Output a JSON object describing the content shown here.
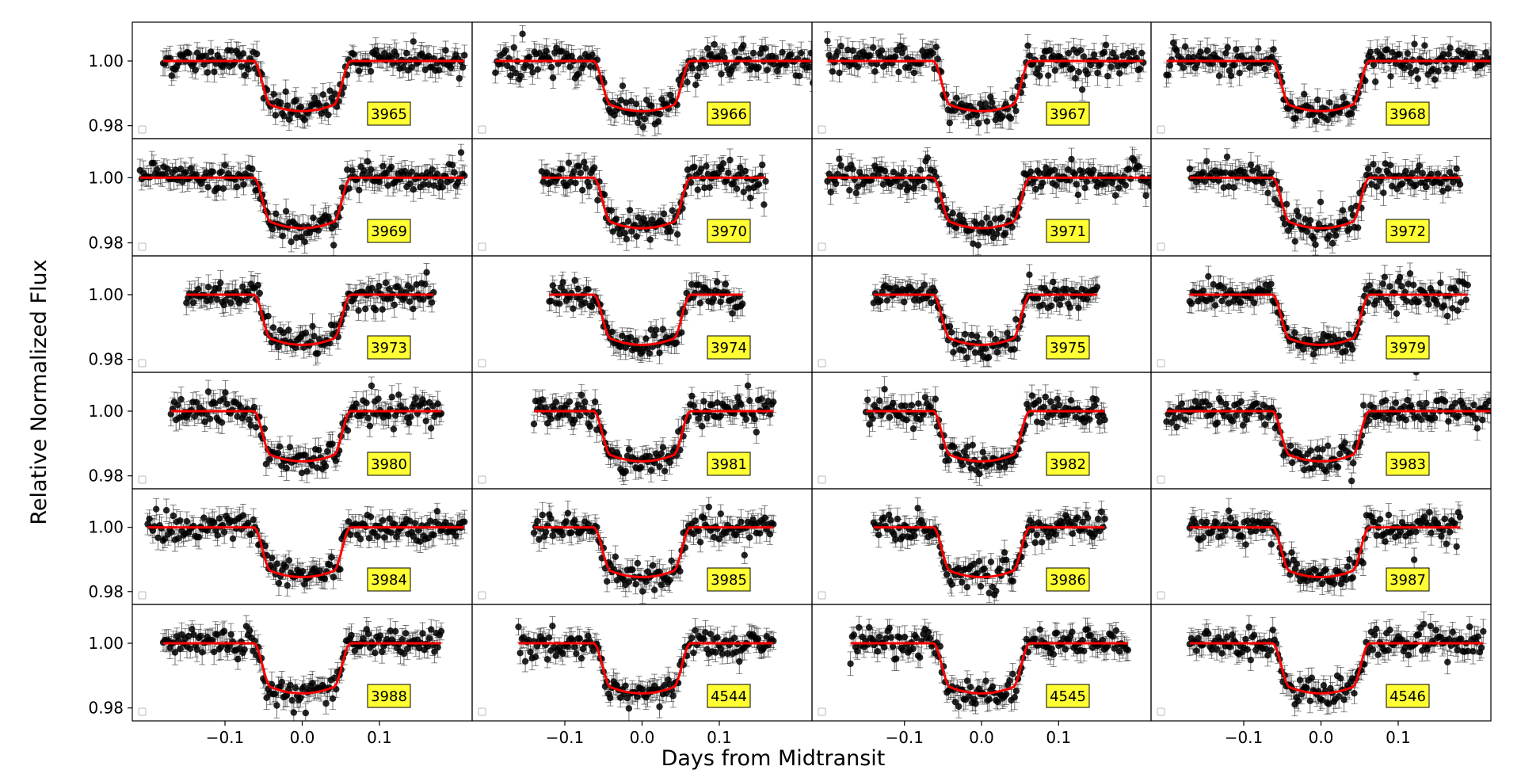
{
  "figure": {
    "xlabel": "Days from Midtransit",
    "ylabel": "Relative Normalized Flux"
  },
  "colors": {
    "model": "#ff0000",
    "data": "#000000",
    "label_box": "#ffff33",
    "frame": "#000000"
  },
  "chart_data": {
    "type": "scatter",
    "layout": "6x4 grid of light-curve panels with shared axes",
    "xlim": [
      -0.22,
      0.22
    ],
    "ylim": [
      0.976,
      1.012
    ],
    "xticks": [
      -0.1,
      0.0,
      0.1
    ],
    "xtick_labels": [
      "−0.1",
      "0.0",
      "0.1"
    ],
    "yticks": [
      0.98,
      1.0
    ],
    "ytick_labels": [
      "0.98",
      "1.00"
    ],
    "grid": false,
    "model": {
      "name": "transit model",
      "baseline": 1.0,
      "depth": 0.0155,
      "ingress_start": -0.063,
      "full_start": -0.04,
      "full_end": 0.04,
      "egress_end": 0.063,
      "color": "#ff0000"
    },
    "data_series": {
      "name": "observed flux",
      "marker": "filled circle with error bars",
      "typical_error": 0.003,
      "color": "#000000"
    },
    "panels": [
      {
        "epoch": "3965",
        "x_range": [
          -0.18,
          0.21
        ]
      },
      {
        "epoch": "3966",
        "x_range": [
          -0.19,
          0.23
        ]
      },
      {
        "epoch": "3967",
        "x_range": [
          -0.2,
          0.21
        ]
      },
      {
        "epoch": "3968",
        "x_range": [
          -0.2,
          0.22
        ]
      },
      {
        "epoch": "3969",
        "x_range": [
          -0.21,
          0.21
        ]
      },
      {
        "epoch": "3970",
        "x_range": [
          -0.13,
          0.16
        ]
      },
      {
        "epoch": "3971",
        "x_range": [
          -0.2,
          0.22
        ]
      },
      {
        "epoch": "3972",
        "x_range": [
          -0.17,
          0.18
        ]
      },
      {
        "epoch": "3973",
        "x_range": [
          -0.15,
          0.17
        ]
      },
      {
        "epoch": "3974",
        "x_range": [
          -0.12,
          0.13
        ]
      },
      {
        "epoch": "3975",
        "x_range": [
          -0.14,
          0.15
        ]
      },
      {
        "epoch": "3979",
        "x_range": [
          -0.17,
          0.19
        ]
      },
      {
        "epoch": "3980",
        "x_range": [
          -0.17,
          0.18
        ]
      },
      {
        "epoch": "3981",
        "x_range": [
          -0.14,
          0.17
        ]
      },
      {
        "epoch": "3982",
        "x_range": [
          -0.15,
          0.16
        ]
      },
      {
        "epoch": "3983",
        "x_range": [
          -0.2,
          0.22
        ]
      },
      {
        "epoch": "3984",
        "x_range": [
          -0.2,
          0.21
        ]
      },
      {
        "epoch": "3985",
        "x_range": [
          -0.14,
          0.17
        ]
      },
      {
        "epoch": "3986",
        "x_range": [
          -0.14,
          0.16
        ]
      },
      {
        "epoch": "3987",
        "x_range": [
          -0.17,
          0.18
        ]
      },
      {
        "epoch": "3988",
        "x_range": [
          -0.18,
          0.18
        ]
      },
      {
        "epoch": "4544",
        "x_range": [
          -0.16,
          0.17
        ]
      },
      {
        "epoch": "4545",
        "x_range": [
          -0.17,
          0.19
        ]
      },
      {
        "epoch": "4546",
        "x_range": [
          -0.17,
          0.21
        ]
      }
    ]
  }
}
